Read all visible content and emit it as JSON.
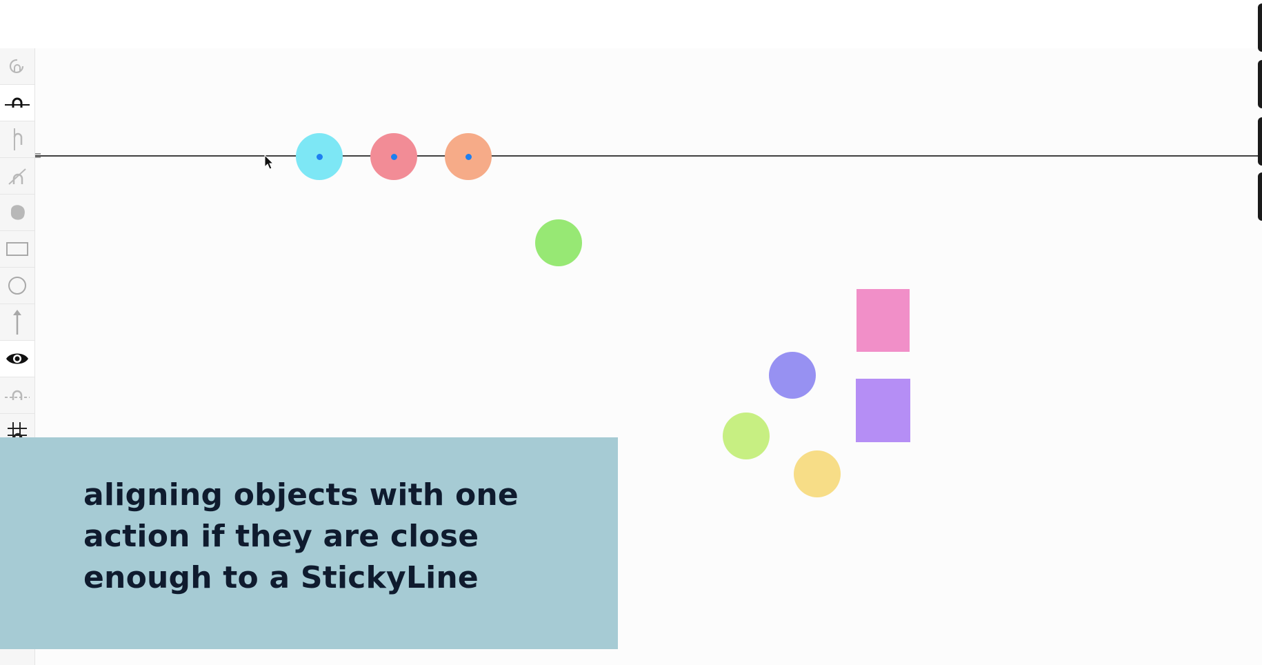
{
  "app": {
    "toolbar": {
      "items": [
        {
          "name": "sticky-circle-tool",
          "icon": "circle-arrow-icon",
          "active": false
        },
        {
          "name": "horizontal-stickyline-tool",
          "icon": "horizontal-stickyline-icon",
          "active": true
        },
        {
          "name": "vertical-stickyline-tool",
          "icon": "vertical-stickyline-icon",
          "active": false
        },
        {
          "name": "diagonal-stickyline-tool",
          "icon": "diagonal-stickyline-icon",
          "active": false
        },
        {
          "name": "freeform-tool",
          "icon": "blob-icon",
          "active": false
        },
        {
          "name": "rectangle-tool",
          "icon": "rectangle-icon",
          "active": false
        },
        {
          "name": "circle-tool",
          "icon": "circle-icon",
          "active": false
        },
        {
          "name": "arrow-tool",
          "icon": "arrow-up-icon",
          "active": false
        },
        {
          "name": "visibility-toggle",
          "icon": "eye-icon",
          "active": true
        },
        {
          "name": "dashed-stickyline-tool",
          "icon": "dashed-stickyline-icon",
          "active": false
        },
        {
          "name": "grid-tool",
          "icon": "grid-icon",
          "active": false
        },
        {
          "name": "reset-tool",
          "icon": "reset-icon",
          "active": false
        }
      ]
    },
    "canvas": {
      "stickyline": {
        "orientation": "horizontal",
        "color": "#3f3f3f"
      },
      "snapped_circles": [
        {
          "color": "#7de7f5",
          "snap_dot_color": "#1e7ff0"
        },
        {
          "color": "#f28c96",
          "snap_dot_color": "#1e7ff0"
        },
        {
          "color": "#f6ab88",
          "snap_dot_color": "#1e7ff0"
        }
      ],
      "free_shapes": [
        {
          "type": "circle",
          "color": "#97e874"
        },
        {
          "type": "rectangle",
          "color": "#f18fc8"
        },
        {
          "type": "circle",
          "color": "#9791f2"
        },
        {
          "type": "rectangle",
          "color": "#b58ef5"
        },
        {
          "type": "circle",
          "color": "#c7ef82"
        },
        {
          "type": "circle",
          "color": "#f7dd87"
        }
      ]
    },
    "caption": {
      "text": "aligning objects with one\naction if they are close\nenough to a StickyLine",
      "background": "#a6cbd4"
    }
  }
}
